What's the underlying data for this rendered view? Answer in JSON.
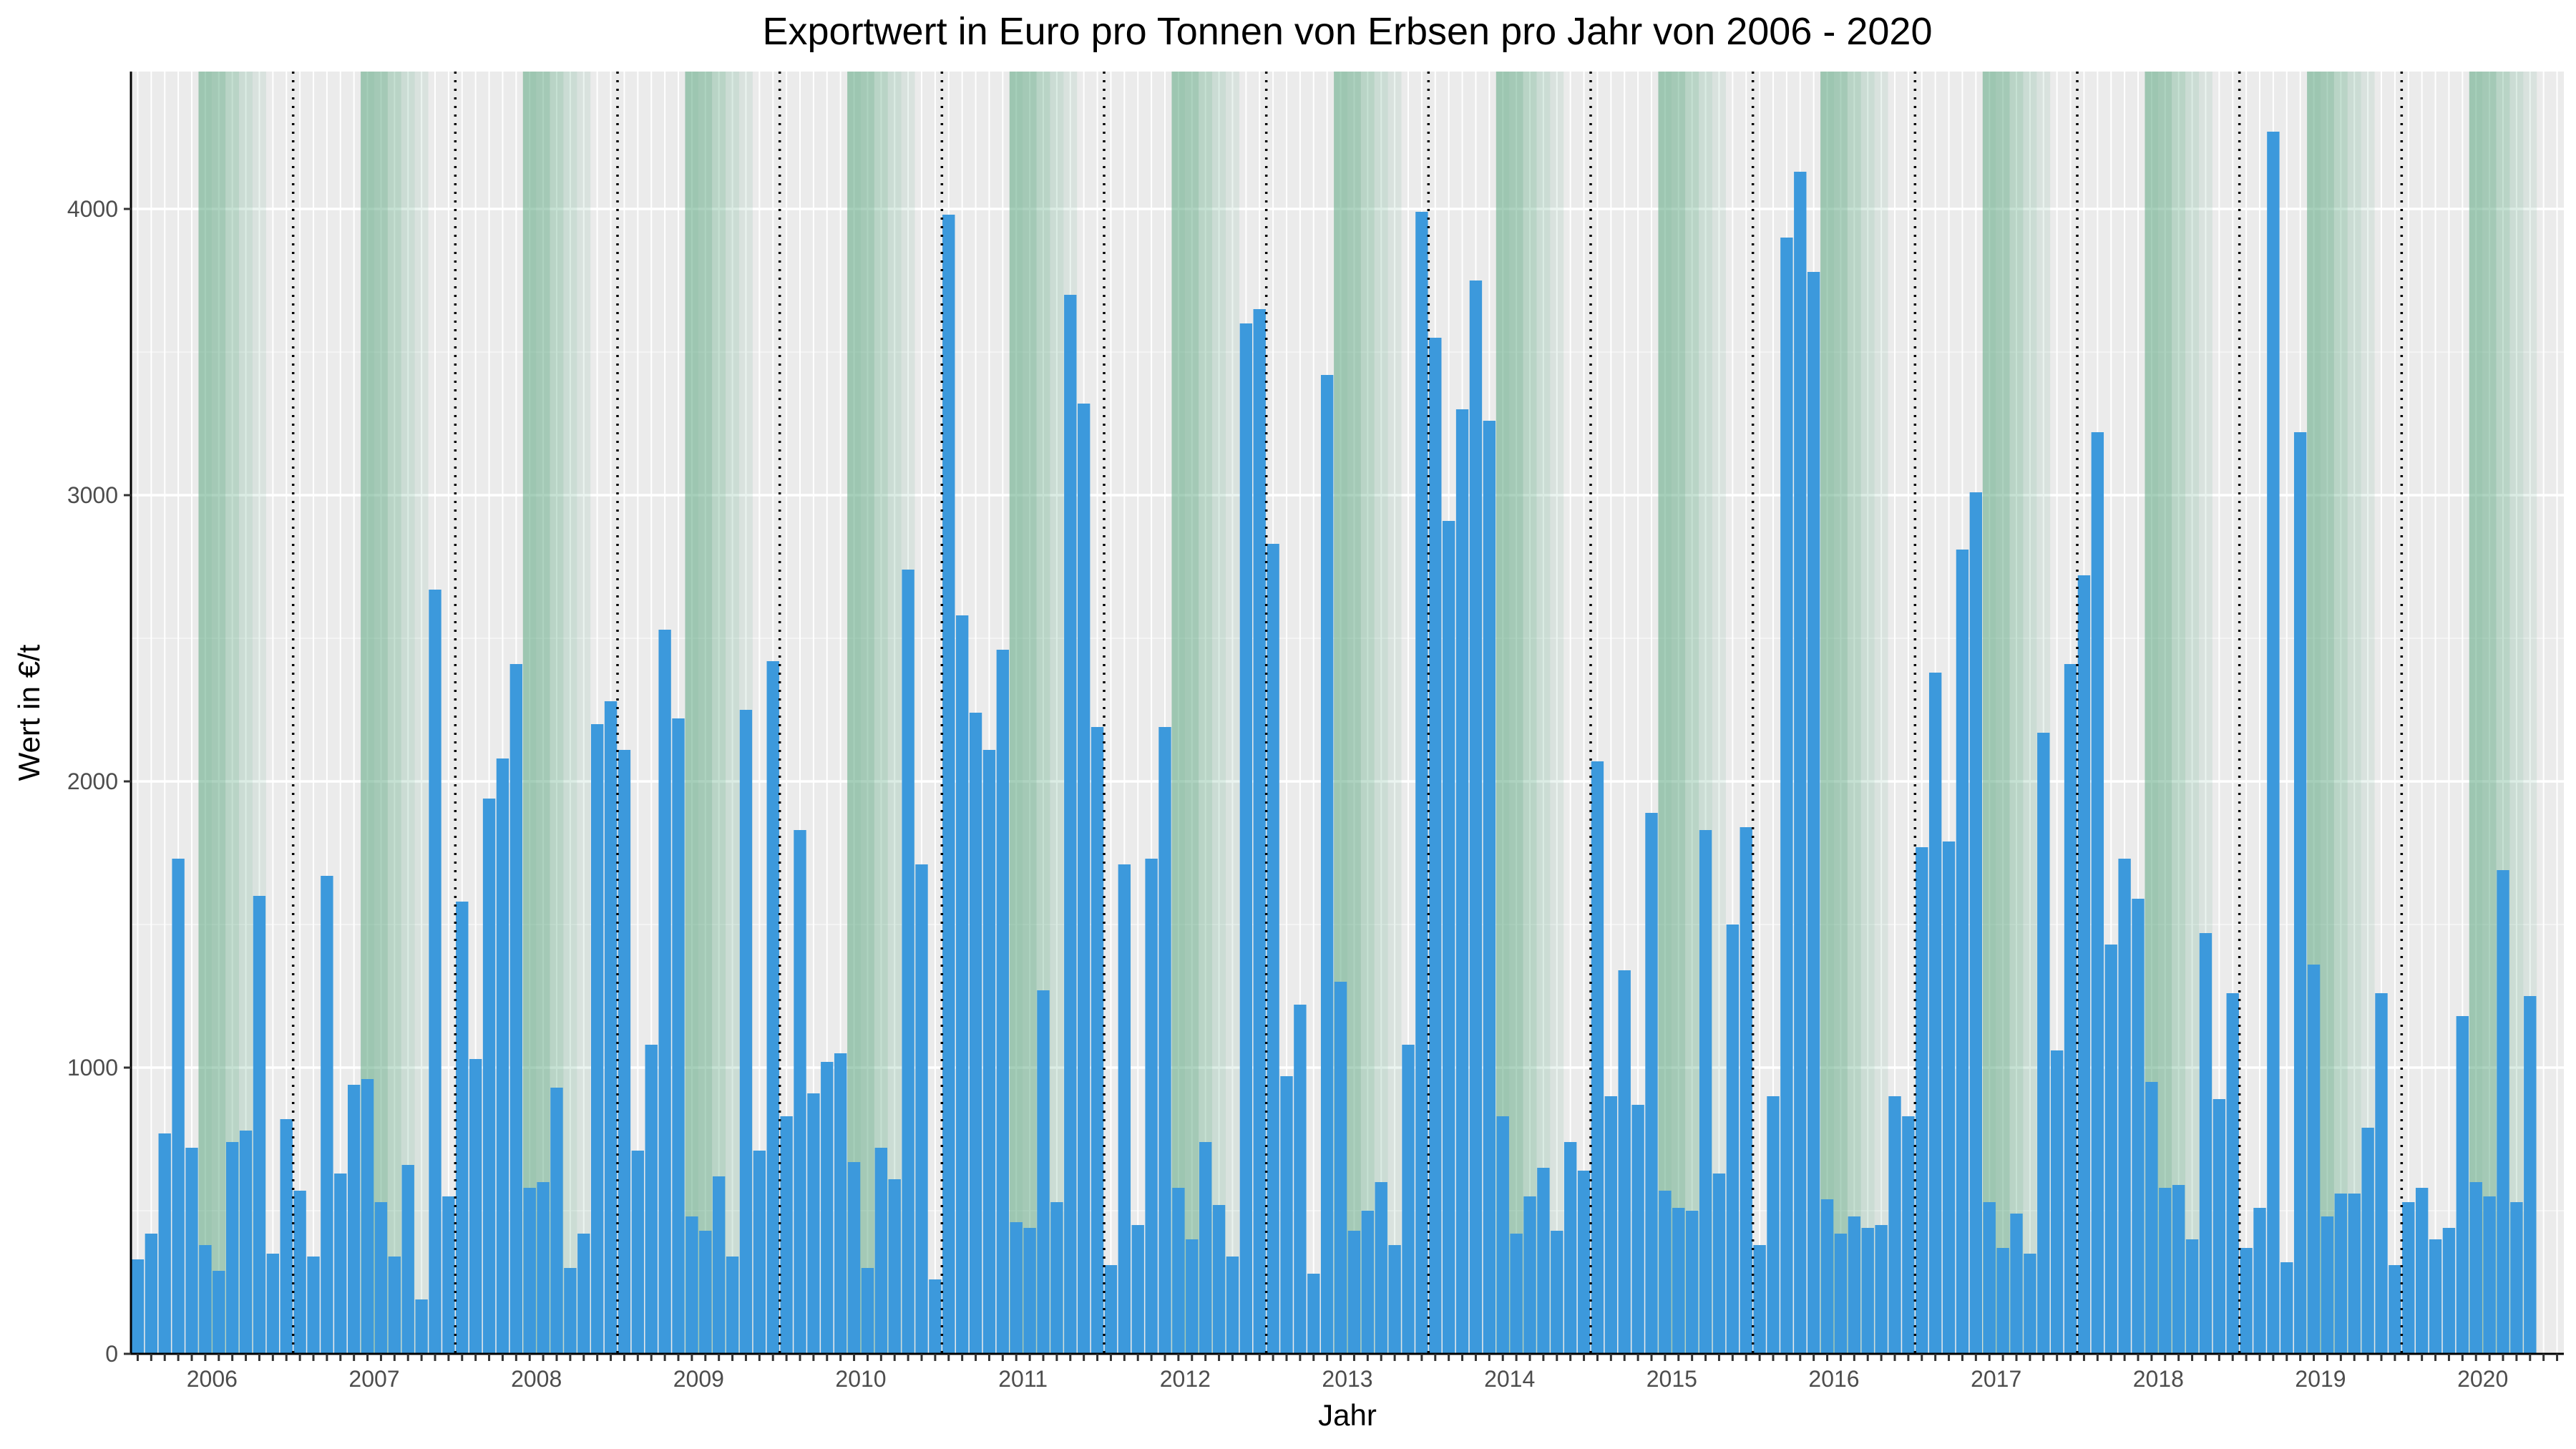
{
  "chart_data": {
    "type": "bar",
    "title": "Exportwert in Euro pro Tonnen von Erbsen pro Jahr von 2006 - 2020",
    "xlabel": "Jahr",
    "ylabel": "Wert in €/t",
    "ylim": [
      0,
      4480
    ],
    "yticks": [
      0,
      1000,
      2000,
      3000,
      4000
    ],
    "ytick_labels": [
      "0",
      "1000",
      "2000",
      "3000",
      "4000"
    ],
    "years": [
      "2006",
      "2007",
      "2008",
      "2009",
      "2010",
      "2011",
      "2012",
      "2013",
      "2014",
      "2015",
      "2016",
      "2017",
      "2018",
      "2019",
      "2020"
    ],
    "bars_per_year": 12,
    "grid": true,
    "year_separators": "dotted vertical line between years",
    "seasonal_shading": {
      "color": "#5da882",
      "months": [
        5,
        6,
        7,
        8,
        9
      ],
      "opacity": [
        0.55,
        0.5,
        0.35,
        0.22,
        0.12
      ]
    },
    "bar_color": "#3c99dc",
    "values": [
      330,
      420,
      770,
      1730,
      720,
      380,
      290,
      740,
      780,
      1600,
      350,
      820,
      570,
      340,
      1670,
      630,
      940,
      960,
      530,
      340,
      660,
      190,
      2670,
      550,
      1580,
      1030,
      1940,
      2080,
      2410,
      580,
      600,
      930,
      300,
      420,
      2200,
      2280,
      2110,
      710,
      1080,
      2530,
      2220,
      480,
      430,
      620,
      340,
      2250,
      710,
      2420,
      830,
      1830,
      910,
      1020,
      1050,
      670,
      300,
      720,
      610,
      2740,
      1710,
      260,
      3980,
      2580,
      2240,
      2110,
      2460,
      460,
      440,
      1270,
      530,
      3700,
      3320,
      2190,
      310,
      1710,
      450,
      1730,
      2190,
      580,
      400,
      740,
      520,
      340,
      3600,
      3650,
      2830,
      970,
      1220,
      280,
      3420,
      1300,
      430,
      500,
      600,
      380,
      1080,
      3990,
      3550,
      2910,
      3300,
      3750,
      3260,
      830,
      420,
      550,
      650,
      430,
      740,
      640,
      2070,
      900,
      1340,
      870,
      1890,
      570,
      510,
      500,
      1830,
      630,
      1500,
      1840,
      380,
      900,
      3900,
      4130,
      3780,
      540,
      420,
      480,
      440,
      450,
      900,
      830,
      1770,
      2380,
      1790,
      2810,
      3010,
      530,
      370,
      490,
      350,
      2170,
      1060,
      2410,
      2720,
      3220,
      1430,
      1730,
      1590,
      950,
      580,
      590,
      400,
      1470,
      890,
      1260,
      370,
      510,
      4270,
      320,
      3220,
      1360,
      480,
      560,
      560,
      790,
      1260,
      310,
      530,
      580,
      400,
      440,
      1180,
      600,
      550,
      1690,
      530,
      1250
    ]
  }
}
